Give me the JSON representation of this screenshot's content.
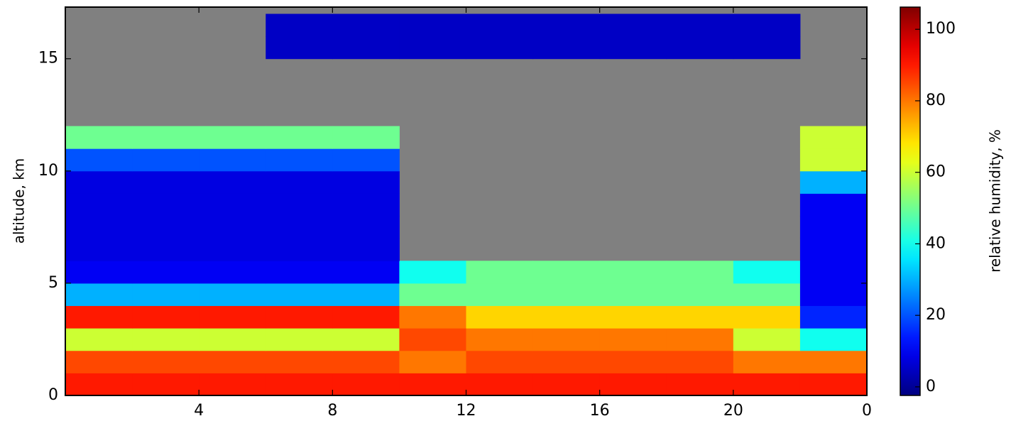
{
  "chart_data": {
    "type": "heatmap",
    "ylabel": "altitude, km",
    "colorbar_label": "relative humidity, %",
    "x_edges": [
      0,
      2,
      4,
      6,
      8,
      10,
      12,
      14,
      16,
      18,
      20,
      22,
      24
    ],
    "y_edges": [
      0,
      1,
      2,
      3,
      4,
      5,
      6,
      7,
      8,
      9,
      10,
      11,
      12,
      13,
      14,
      15,
      16,
      17
    ],
    "z": [
      [
        90,
        90,
        90,
        90,
        90,
        90,
        90,
        90,
        90,
        90,
        90,
        90
      ],
      [
        85,
        85,
        85,
        85,
        85,
        80,
        85,
        85,
        85,
        85,
        80,
        80
      ],
      [
        60,
        60,
        60,
        60,
        60,
        85,
        80,
        80,
        80,
        80,
        60,
        40
      ],
      [
        90,
        90,
        90,
        90,
        90,
        80,
        70,
        70,
        70,
        70,
        70,
        15
      ],
      [
        30,
        30,
        30,
        30,
        30,
        50,
        50,
        50,
        50,
        50,
        50,
        10
      ],
      [
        10,
        10,
        10,
        10,
        10,
        40,
        50,
        50,
        50,
        50,
        40,
        10
      ],
      [
        8,
        8,
        8,
        8,
        8,
        null,
        null,
        null,
        null,
        null,
        null,
        10
      ],
      [
        8,
        8,
        8,
        8,
        8,
        null,
        null,
        null,
        null,
        null,
        null,
        10
      ],
      [
        8,
        8,
        8,
        8,
        8,
        null,
        null,
        null,
        null,
        null,
        null,
        10
      ],
      [
        8,
        8,
        8,
        8,
        8,
        null,
        null,
        null,
        null,
        null,
        null,
        30
      ],
      [
        20,
        20,
        20,
        20,
        20,
        null,
        null,
        null,
        null,
        null,
        null,
        60
      ],
      [
        50,
        50,
        50,
        50,
        50,
        null,
        null,
        null,
        null,
        null,
        null,
        60
      ],
      [
        null,
        null,
        null,
        null,
        null,
        null,
        null,
        null,
        null,
        null,
        null,
        null
      ],
      [
        null,
        null,
        null,
        null,
        null,
        null,
        null,
        null,
        null,
        null,
        null,
        null
      ],
      [
        null,
        null,
        null,
        null,
        null,
        null,
        null,
        null,
        null,
        null,
        null,
        null
      ],
      [
        null,
        null,
        null,
        5,
        5,
        5,
        5,
        5,
        5,
        5,
        5,
        null
      ],
      [
        null,
        null,
        null,
        5,
        5,
        5,
        5,
        5,
        5,
        5,
        5,
        null
      ]
    ],
    "xlim": [
      0,
      24
    ],
    "xticks": [
      4,
      8,
      12,
      16,
      20,
      {
        "value": 24,
        "label": "0"
      }
    ],
    "ylim": [
      0,
      17.3
    ],
    "yticks": [
      0,
      5,
      10,
      15
    ],
    "clim": [
      -2.4,
      106.2
    ],
    "cticks": [
      0,
      20,
      40,
      60,
      80,
      100
    ],
    "colormap": "jet",
    "missing_color": "#808080"
  }
}
